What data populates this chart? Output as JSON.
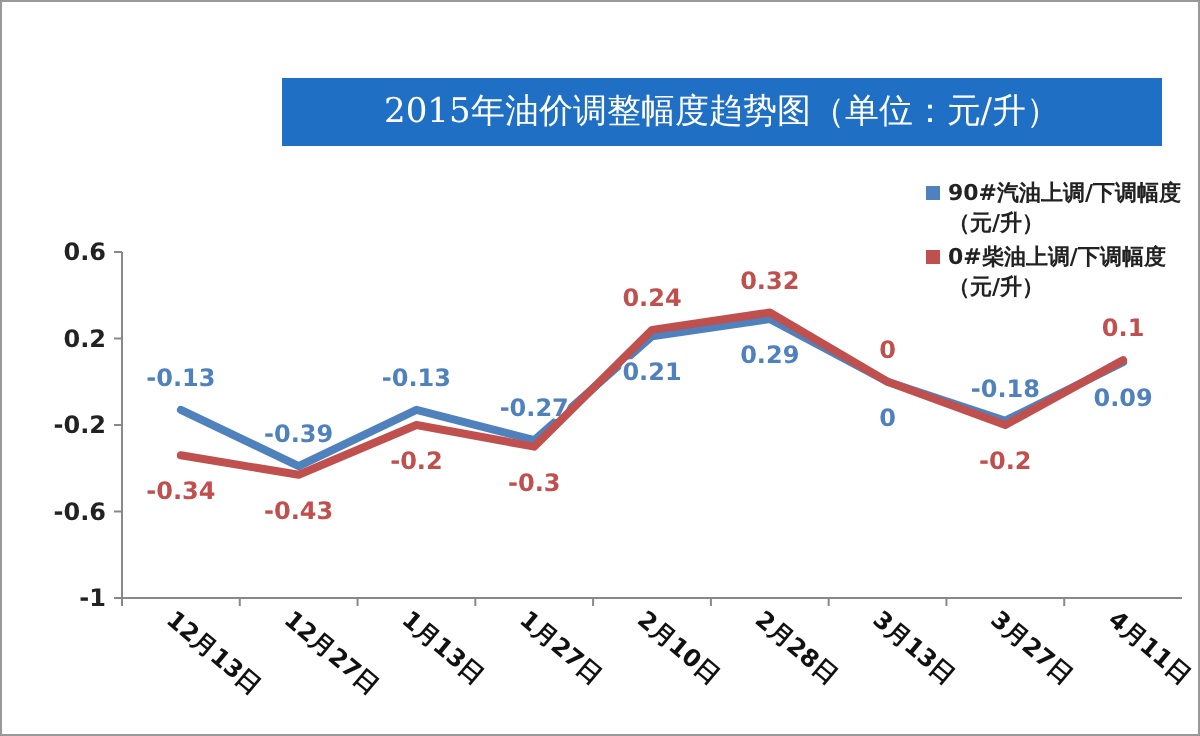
{
  "chart_data": {
    "type": "line",
    "title": "2015年油价调整幅度趋势图（单位：元/升）",
    "categories": [
      "12月13日",
      "12月27日",
      "1月13日",
      "1月27日",
      "2月10日",
      "2月28日",
      "3月13日",
      "3月27日",
      "4月11日"
    ],
    "series": [
      {
        "name": "90#汽油上调/下调幅度（元/升）",
        "color": "#4f81bd",
        "values": [
          -0.13,
          -0.39,
          -0.13,
          -0.27,
          0.21,
          0.29,
          0,
          -0.18,
          0.09
        ]
      },
      {
        "name": "0#柴油上调/下调幅度（元/升）",
        "color": "#c0504d",
        "values": [
          -0.34,
          -0.43,
          -0.2,
          -0.3,
          0.24,
          0.32,
          0,
          -0.2,
          0.1
        ]
      }
    ],
    "ylim": [
      -1,
      0.6
    ],
    "yticks": [
      0.6,
      0.2,
      -0.2,
      -0.6,
      -1
    ],
    "data_labels": true,
    "legend": "top right",
    "marker": "none",
    "line_style": "solid"
  }
}
